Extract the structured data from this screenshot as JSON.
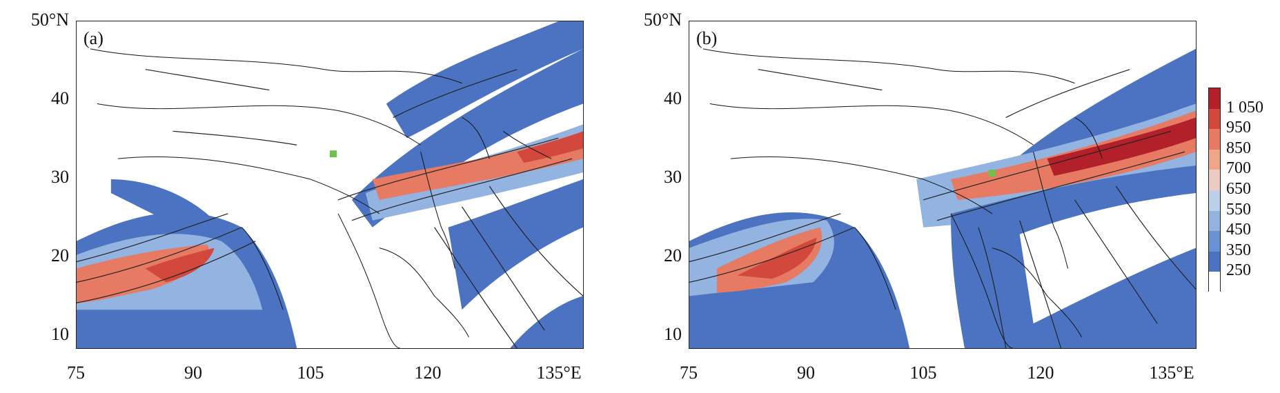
{
  "panels": [
    {
      "label": "(a)"
    },
    {
      "label": "(b)"
    }
  ],
  "y_ticks": [
    "50°N",
    "40",
    "30",
    "20",
    "10"
  ],
  "x_ticks": [
    "75",
    "90",
    "105",
    "120",
    "135°E"
  ],
  "legend": {
    "labels": [
      "1 050",
      "950",
      "850",
      "700",
      "650",
      "550",
      "450",
      "350",
      "250"
    ],
    "colors": [
      "#b2202a",
      "#d2483d",
      "#e67a62",
      "#f1a68a",
      "#ecccc1",
      "#bcd0ea",
      "#93b3e0",
      "#6a91d3",
      "#4b73c2",
      "#ffffff"
    ]
  },
  "map_data": {
    "type": "filled-contour-with-streamlines",
    "lon_range": [
      75,
      140
    ],
    "lat_range": [
      8,
      50
    ],
    "marker_color": "#6cc24a"
  }
}
